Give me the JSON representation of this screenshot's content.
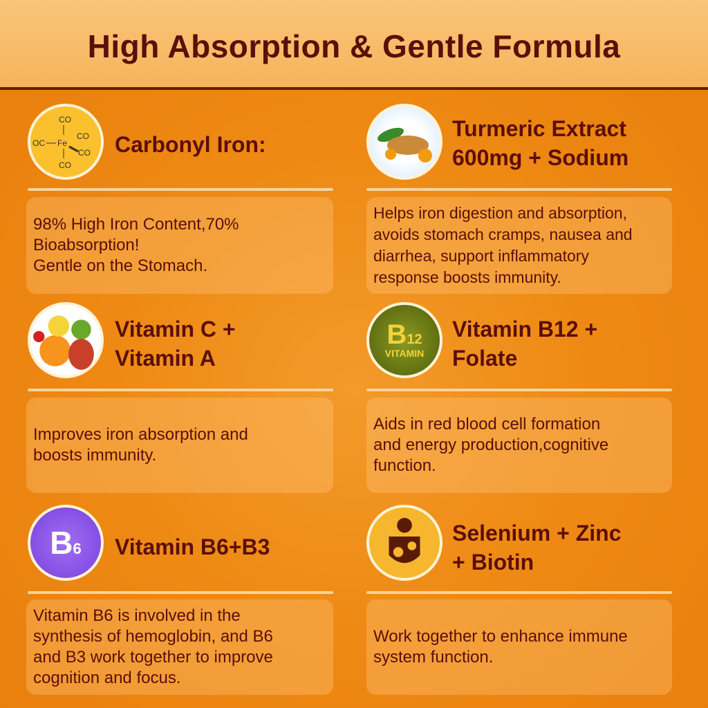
{
  "title": "High Absorption & Gentle Formula",
  "cards": [
    {
      "heading": "Carbonyl Iron:",
      "text": "98% High Iron Content,70%\nBioabsorption!\nGentle on the Stomach.",
      "icon": "carbonyl-iron-molecule-icon",
      "icon_labels": {
        "center": "Fe",
        "ligand": "CO",
        "left": "OC"
      }
    },
    {
      "heading": "Turmeric Extract\n600mg + Sodium",
      "text": "Helps iron digestion and absorption,\navoids stomach cramps, nausea and\ndiarrhea, support inflammatory\nresponse boosts immunity.",
      "icon": "turmeric-icon"
    },
    {
      "heading": "Vitamin C +\nVitamin A",
      "text": "Improves iron absorption and\nboosts immunity.",
      "icon": "fruits-icon"
    },
    {
      "heading": "Vitamin B12 +\nFolate",
      "text": "Aids in red blood cell formation\nand energy production,cognitive\nfunction.",
      "icon": "b12-vitamin-icon",
      "icon_labels": {
        "main": "B",
        "sub": "12",
        "word": "VITAMIN"
      }
    },
    {
      "heading": "Vitamin B6+B3",
      "text": "Vitamin B6 is involved in the\nsynthesis of hemoglobin, and B6\nand B3 work together to improve\ncognition and focus.",
      "icon": "b6-icon",
      "icon_labels": {
        "main": "B",
        "sub": "6"
      }
    },
    {
      "heading": "Selenium + Zinc\n+ Biotin",
      "text": "Work together to enhance immune\nsystem function.",
      "icon": "immune-shield-icon"
    }
  ],
  "colors": {
    "text": "#5a0f0a",
    "background": "#ee8a14",
    "header": "#f6b45c"
  }
}
